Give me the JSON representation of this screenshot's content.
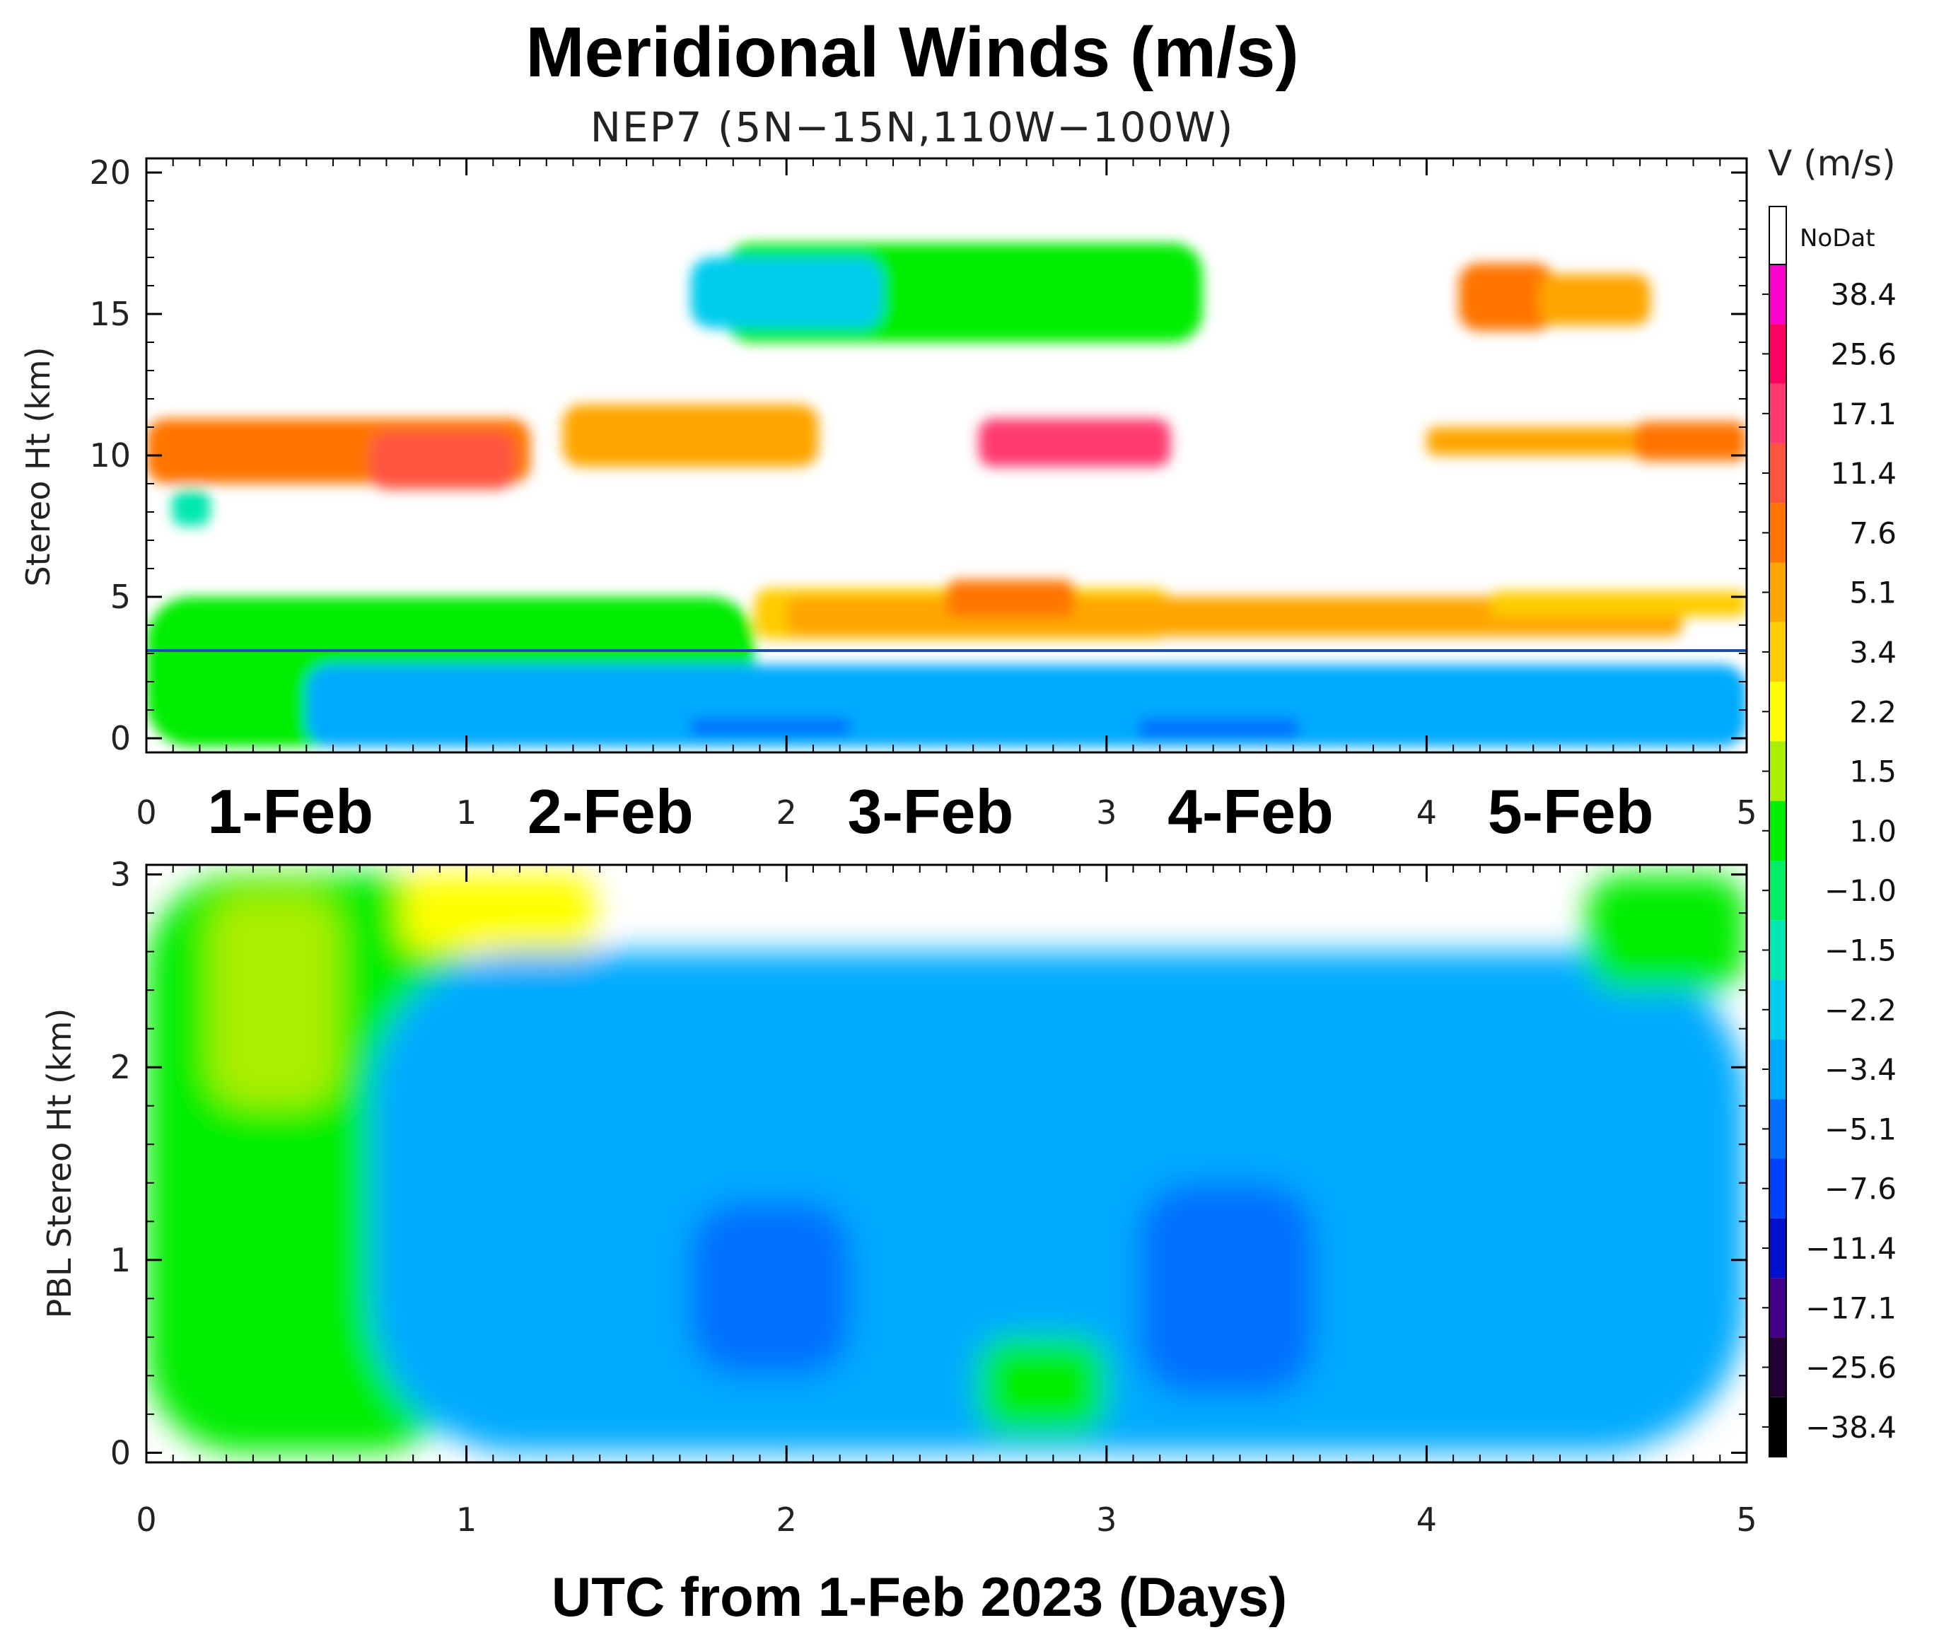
{
  "chart_data": {
    "type": "heatmap",
    "title": "Meridional Winds (m/s)",
    "subtitle": "NEP7 (5N−15N,110W−100W)",
    "xlabel": "UTC from 1-Feb 2023 (Days)",
    "xlim": [
      0,
      5
    ],
    "x_ticks": [
      "0",
      "1",
      "2",
      "3",
      "4",
      "5"
    ],
    "day_labels": [
      "1-Feb",
      "2-Feb",
      "3-Feb",
      "4-Feb",
      "5-Feb"
    ],
    "panels": [
      {
        "name": "upper",
        "ylabel": "Stereo Ht (km)",
        "ylim": [
          -0.5,
          20.5
        ],
        "y_ticks": [
          0,
          5,
          10,
          15,
          20
        ],
        "reference_line_km": 3.1,
        "features": [
          {
            "x": [
              0.0,
              1.9
            ],
            "y": [
              -0.3,
              5.0
            ],
            "v": 1.0
          },
          {
            "x": [
              1.9,
              3.2
            ],
            "y": [
              3.5,
              5.3
            ],
            "v": 3.4
          },
          {
            "x": [
              0.5,
              5.0
            ],
            "y": [
              -0.3,
              2.6
            ],
            "v": -3.4
          },
          {
            "x": [
              1.7,
              2.2
            ],
            "y": [
              0.1,
              0.7
            ],
            "v": -5.1
          },
          {
            "x": [
              3.1,
              3.6
            ],
            "y": [
              0.0,
              0.7
            ],
            "v": -5.1
          },
          {
            "x": [
              2.0,
              4.8
            ],
            "y": [
              3.6,
              5.0
            ],
            "v": 5.1
          },
          {
            "x": [
              2.5,
              2.9
            ],
            "y": [
              4.3,
              5.6
            ],
            "v": 7.6
          },
          {
            "x": [
              4.2,
              5.0
            ],
            "y": [
              4.3,
              5.2
            ],
            "v": 3.4
          },
          {
            "x": [
              1.8,
              3.3
            ],
            "y": [
              14.0,
              17.5
            ],
            "v": 1.0
          },
          {
            "x": [
              1.7,
              2.3
            ],
            "y": [
              14.5,
              17.0
            ],
            "v": -2.2
          },
          {
            "x": [
              4.1,
              4.4
            ],
            "y": [
              14.4,
              16.8
            ],
            "v": 7.6
          },
          {
            "x": [
              4.35,
              4.7
            ],
            "y": [
              14.6,
              16.4
            ],
            "v": 5.1
          },
          {
            "x": [
              0.0,
              1.2
            ],
            "y": [
              9.0,
              11.3
            ],
            "v": 7.6
          },
          {
            "x": [
              0.7,
              1.15
            ],
            "y": [
              8.8,
              10.8
            ],
            "v": 11.4
          },
          {
            "x": [
              1.3,
              2.1
            ],
            "y": [
              9.6,
              11.8
            ],
            "v": 5.1
          },
          {
            "x": [
              2.6,
              3.2
            ],
            "y": [
              9.6,
              11.3
            ],
            "v": 17.1
          },
          {
            "x": [
              4.0,
              5.0
            ],
            "y": [
              10.0,
              11.0
            ],
            "v": 5.1
          },
          {
            "x": [
              4.65,
              5.0
            ],
            "y": [
              9.8,
              11.2
            ],
            "v": 7.6
          },
          {
            "x": [
              0.08,
              0.2
            ],
            "y": [
              7.5,
              8.8
            ],
            "v": -1.5
          }
        ]
      },
      {
        "name": "lower",
        "ylabel": "PBL Stereo Ht (km)",
        "ylim": [
          -0.05,
          3.05
        ],
        "y_ticks": [
          0,
          1,
          2,
          3
        ],
        "features": [
          {
            "x": [
              0.0,
              1.0
            ],
            "y": [
              0.0,
              3.0
            ],
            "v": 1.0
          },
          {
            "x": [
              0.8,
              1.4
            ],
            "y": [
              2.6,
              3.0
            ],
            "v": 2.2
          },
          {
            "x": [
              0.2,
              0.6
            ],
            "y": [
              1.8,
              2.9
            ],
            "v": 1.5
          },
          {
            "x": [
              0.7,
              5.0
            ],
            "y": [
              0.0,
              2.6
            ],
            "v": -3.4
          },
          {
            "x": [
              1.7,
              2.2
            ],
            "y": [
              0.4,
              1.3
            ],
            "v": -5.1
          },
          {
            "x": [
              3.1,
              3.65
            ],
            "y": [
              0.3,
              1.4
            ],
            "v": -5.1
          },
          {
            "x": [
              2.6,
              3.0
            ],
            "y": [
              0.1,
              0.6
            ],
            "v": 1.0
          },
          {
            "x": [
              4.5,
              5.0
            ],
            "y": [
              2.4,
              3.0
            ],
            "v": 1.0
          }
        ]
      }
    ],
    "colorbar": {
      "title": "V (m/s)",
      "nodata_label": "NoDat",
      "levels": [
        "38.4",
        "25.6",
        "17.1",
        "11.4",
        "7.6",
        "5.1",
        "3.4",
        "2.2",
        "1.5",
        "1.0",
        "−1.0",
        "−1.5",
        "−2.2",
        "−3.4",
        "−5.1",
        "−7.6",
        "−11.4",
        "−17.1",
        "−25.6",
        "−38.4"
      ],
      "colors": [
        "#ff00cc",
        "#ff0060",
        "#ff3a70",
        "#ff5540",
        "#ff7400",
        "#ffa500",
        "#ffcc00",
        "#ffff00",
        "#aaee00",
        "#00ee00",
        "#00ee66",
        "#00e8b0",
        "#00ccee",
        "#00aaff",
        "#0070ff",
        "#0040ff",
        "#0010cc",
        "#440088",
        "#220033",
        "#000000"
      ],
      "ranges": [
        [
          38.4,
          60
        ],
        [
          25.6,
          38.4
        ],
        [
          17.1,
          25.6
        ],
        [
          11.4,
          17.1
        ],
        [
          7.6,
          11.4
        ],
        [
          5.1,
          7.6
        ],
        [
          3.4,
          5.1
        ],
        [
          2.2,
          3.4
        ],
        [
          1.5,
          2.2
        ],
        [
          1.0,
          1.5
        ],
        [
          -1.0,
          1.0
        ],
        [
          -1.5,
          -1.0
        ],
        [
          -2.2,
          -1.5
        ],
        [
          -3.4,
          -2.2
        ],
        [
          -5.1,
          -3.4
        ],
        [
          -7.6,
          -5.1
        ],
        [
          -11.4,
          -7.6
        ],
        [
          -17.1,
          -11.4
        ],
        [
          -25.6,
          -17.1
        ],
        [
          -60,
          -25.6
        ]
      ]
    }
  }
}
